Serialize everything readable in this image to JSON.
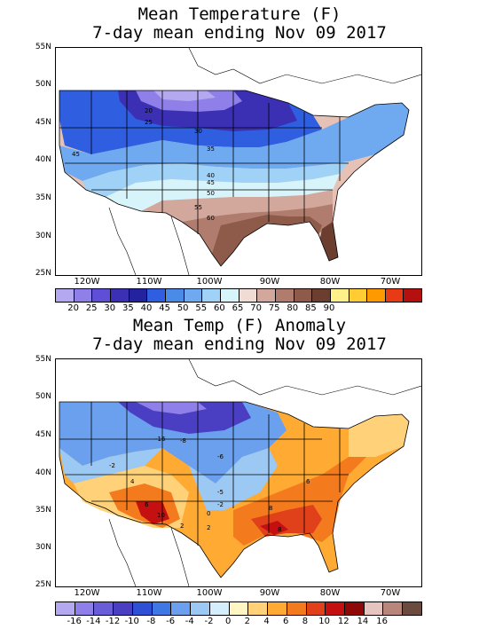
{
  "panel1": {
    "title_line1": "Mean Temperature (F)",
    "title_line2": "7-day mean ending Nov 09 2017",
    "lat_labels": [
      "55N",
      "50N",
      "45N",
      "40N",
      "35N",
      "30N",
      "25N"
    ],
    "lon_labels": [
      "120W",
      "110W",
      "100W",
      "90W",
      "80W",
      "70W"
    ],
    "contour_labels": [
      "20",
      "25",
      "30",
      "35",
      "40",
      "45",
      "45",
      "50",
      "55",
      "60"
    ],
    "colorbar_labels": [
      "20",
      "25",
      "30",
      "35",
      "40",
      "45",
      "50",
      "55",
      "60",
      "65",
      "70",
      "75",
      "80",
      "85",
      "90"
    ],
    "colorbar_colors": [
      "#b4a8f0",
      "#8f7fe8",
      "#5e4fd6",
      "#3b2fb4",
      "#2323a0",
      "#2f5fe0",
      "#4a8be8",
      "#6fa9f0",
      "#a0d2f7",
      "#d8f4fb",
      "#f0dcd4",
      "#d3a89c",
      "#b07c6e",
      "#8e5a4a",
      "#6b3e30",
      "#fff08a",
      "#ffcc33",
      "#ff9900",
      "#e83a14",
      "#b41010"
    ]
  },
  "panel2": {
    "title_line1": "Mean Temp (F) Anomaly",
    "title_line2": "7-day mean ending Nov 09 2017",
    "lat_labels": [
      "55N",
      "50N",
      "45N",
      "40N",
      "35N",
      "30N",
      "25N"
    ],
    "lon_labels": [
      "120W",
      "110W",
      "100W",
      "90W",
      "80W",
      "70W"
    ],
    "contour_labels": [
      "-16",
      "-8",
      "-2",
      "-6",
      "-5",
      "-2",
      "4",
      "6",
      "10",
      "2",
      "0",
      "2",
      "8",
      "6",
      "8"
    ],
    "colorbar_labels": [
      "-16",
      "-14",
      "-12",
      "-10",
      "-8",
      "-6",
      "-4",
      "-2",
      "0",
      "2",
      "4",
      "6",
      "8",
      "10",
      "12",
      "14",
      "16"
    ],
    "colorbar_colors": [
      "#b4a8f0",
      "#8f7fe8",
      "#6a5ed8",
      "#4a3fc2",
      "#2f4fd4",
      "#3f78e4",
      "#6aa0ee",
      "#9cc8f4",
      "#d4eefb",
      "#fff6c4",
      "#ffd27a",
      "#ffaa33",
      "#f47a1e",
      "#e0401a",
      "#c41010",
      "#8e0808",
      "#e8c4c0",
      "#b8867a",
      "#6b4a40"
    ]
  }
}
